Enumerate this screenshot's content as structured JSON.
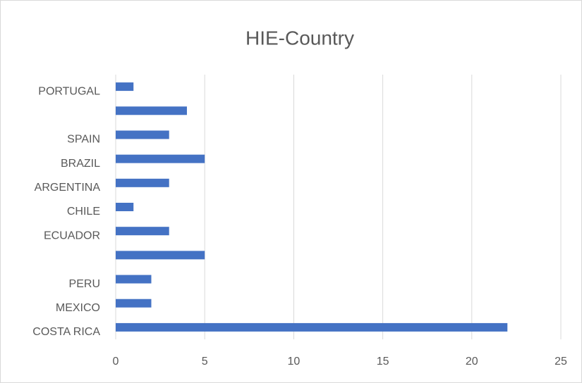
{
  "chart_data": {
    "type": "bar",
    "orientation": "horizontal",
    "title": "HIE-Country",
    "categories": [
      "COSTA RICA",
      "MEXICO",
      "PERU",
      null,
      "ECUADOR",
      "CHILE",
      "ARGENTINA",
      "BRAZIL",
      "SPAIN",
      null,
      "PORTUGAL"
    ],
    "values": [
      22,
      2,
      2,
      5,
      3,
      1,
      3,
      5,
      3,
      4,
      1
    ],
    "color": "#4472c4",
    "xlim": [
      0,
      25
    ],
    "xticks": [
      0,
      5,
      10,
      15,
      20,
      25
    ],
    "grid": true
  }
}
